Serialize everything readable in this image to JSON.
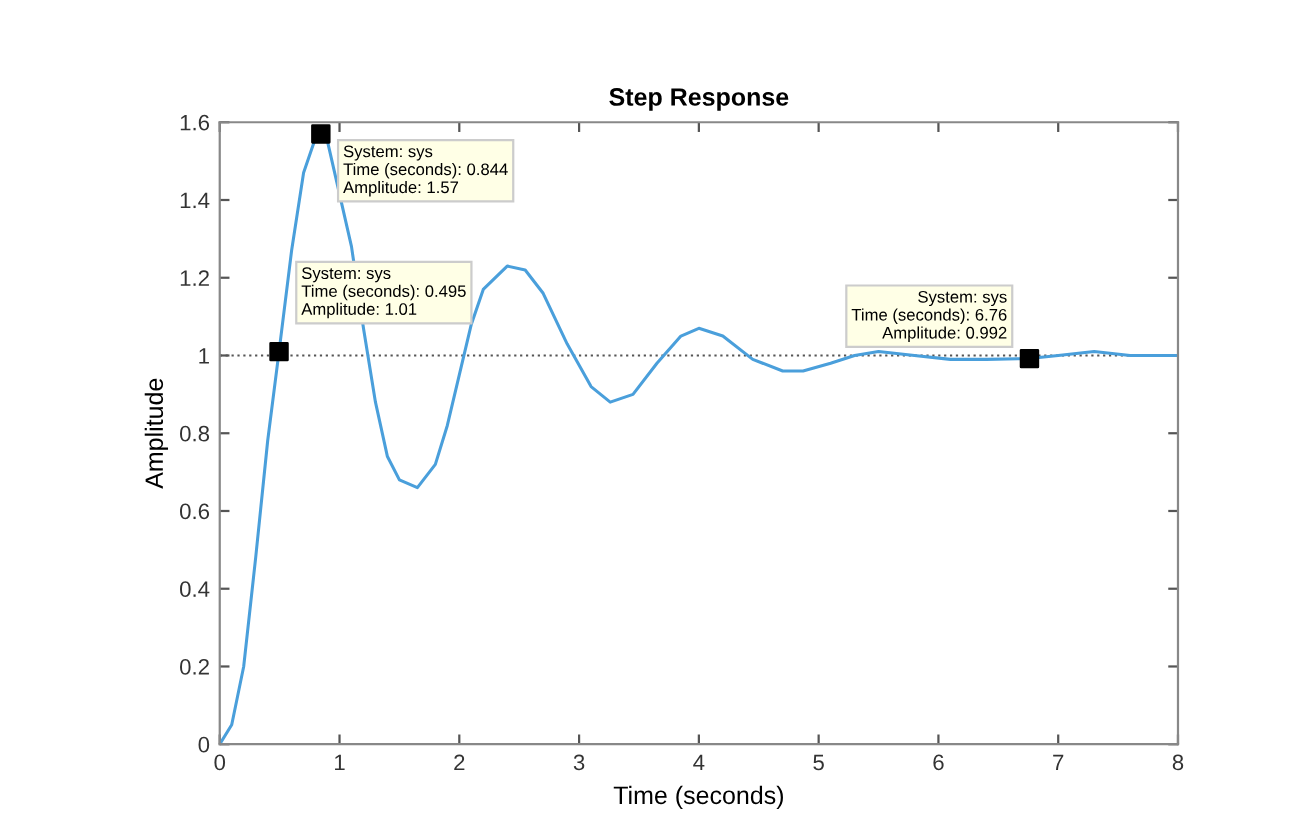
{
  "chart_data": {
    "type": "line",
    "title": "Step Response",
    "xlabel": "Time (seconds)",
    "ylabel": "Amplitude",
    "xlim": [
      0,
      8
    ],
    "xticks": [
      0,
      1,
      2,
      3,
      4,
      5,
      6,
      7,
      8
    ],
    "ylim": [
      0,
      1.6
    ],
    "yticks": [
      0,
      0.2,
      0.4,
      0.6,
      0.8,
      1,
      1.2,
      1.4,
      1.6
    ],
    "grid": false,
    "series": [
      {
        "color": "#4a9fdb",
        "x": [
          0,
          0.1,
          0.2,
          0.3,
          0.4,
          0.495,
          0.6,
          0.7,
          0.8,
          0.844,
          0.9,
          1.1,
          1.2,
          1.3,
          1.4,
          1.5,
          1.65,
          1.8,
          1.9,
          2.0,
          2.1,
          2.2,
          2.4,
          2.55,
          2.7,
          2.9,
          3.1,
          3.26,
          3.45,
          3.65,
          3.85,
          4.0,
          4.2,
          4.45,
          4.7,
          4.87,
          5.1,
          5.3,
          5.5,
          5.8,
          6.1,
          6.4,
          6.76,
          7.0,
          7.3,
          7.6,
          8.0
        ],
        "values": [
          0,
          0.05,
          0.2,
          0.48,
          0.78,
          1.01,
          1.27,
          1.47,
          1.56,
          1.57,
          1.55,
          1.28,
          1.07,
          0.88,
          0.74,
          0.68,
          0.66,
          0.72,
          0.82,
          0.95,
          1.08,
          1.17,
          1.23,
          1.22,
          1.16,
          1.03,
          0.92,
          0.88,
          0.9,
          0.98,
          1.05,
          1.07,
          1.05,
          0.99,
          0.96,
          0.96,
          0.98,
          1.0,
          1.01,
          1.0,
          0.99,
          0.99,
          0.992,
          1.0,
          1.01,
          1.0,
          1.0
        ]
      },
      {
        "type": "scatter",
        "color": "#000000",
        "marker": "square",
        "x": [
          0.495,
          0.844,
          6.76
        ],
        "values": [
          1.01,
          1.57,
          0.992
        ]
      }
    ],
    "ref_lines": [
      {
        "axis": "y",
        "value": 1,
        "color": "#555555",
        "line_style": "dotted"
      }
    ],
    "annotations": [
      {
        "text": "System: sys\nTime (seconds): 0.844\nAmplitude: 1.57",
        "x": 0.844,
        "y": 1.57
      },
      {
        "text": "System: sys\nTime (seconds): 0.495\nAmplitude: 1.01",
        "x": 0.495,
        "y": 1.01
      },
      {
        "text": "System: sys\nTime (seconds): 6.76\nAmplitude: 0.992",
        "x": 6.76,
        "y": 0.992
      }
    ]
  }
}
